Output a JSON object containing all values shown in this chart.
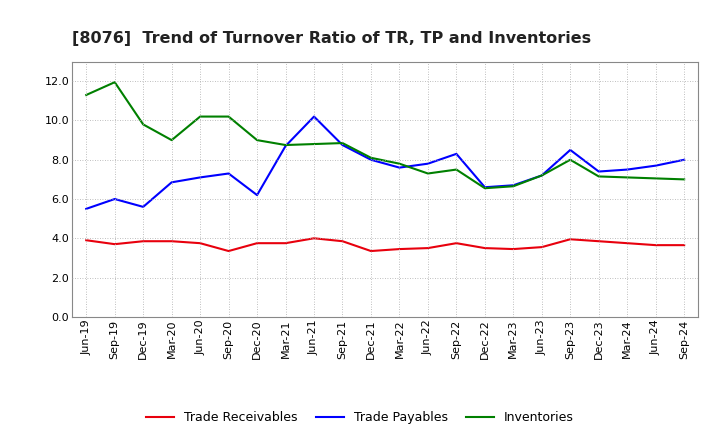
{
  "title": "[8076]  Trend of Turnover Ratio of TR, TP and Inventories",
  "x_labels": [
    "Jun-19",
    "Sep-19",
    "Dec-19",
    "Mar-20",
    "Jun-20",
    "Sep-20",
    "Dec-20",
    "Mar-21",
    "Jun-21",
    "Sep-21",
    "Dec-21",
    "Mar-22",
    "Jun-22",
    "Sep-22",
    "Dec-22",
    "Mar-23",
    "Jun-23",
    "Sep-23",
    "Dec-23",
    "Mar-24",
    "Jun-24",
    "Sep-24"
  ],
  "trade_receivables": [
    3.9,
    3.7,
    3.85,
    3.85,
    3.75,
    3.35,
    3.75,
    3.75,
    4.0,
    3.85,
    3.35,
    3.45,
    3.5,
    3.75,
    3.5,
    3.45,
    3.55,
    3.95,
    3.85,
    3.75,
    3.65,
    3.65
  ],
  "trade_payables": [
    5.5,
    6.0,
    5.6,
    6.85,
    7.1,
    7.3,
    6.2,
    8.7,
    10.2,
    8.75,
    8.0,
    7.6,
    7.8,
    8.3,
    6.6,
    6.7,
    7.2,
    8.5,
    7.4,
    7.5,
    7.7,
    8.0
  ],
  "inventories": [
    11.3,
    11.95,
    9.8,
    9.0,
    10.2,
    10.2,
    9.0,
    8.75,
    8.8,
    8.85,
    8.1,
    7.8,
    7.3,
    7.5,
    6.55,
    6.65,
    7.2,
    8.0,
    7.15,
    7.1,
    7.05,
    7.0
  ],
  "ylim": [
    0.0,
    13.0
  ],
  "yticks": [
    0.0,
    2.0,
    4.0,
    6.0,
    8.0,
    10.0,
    12.0
  ],
  "line_colors": {
    "trade_receivables": "#e8000d",
    "trade_payables": "#0000ff",
    "inventories": "#008000"
  },
  "legend_labels": [
    "Trade Receivables",
    "Trade Payables",
    "Inventories"
  ],
  "background_color": "#ffffff",
  "grid_color": "#aaaaaa",
  "title_fontsize": 11.5,
  "tick_fontsize": 8,
  "legend_fontsize": 9
}
